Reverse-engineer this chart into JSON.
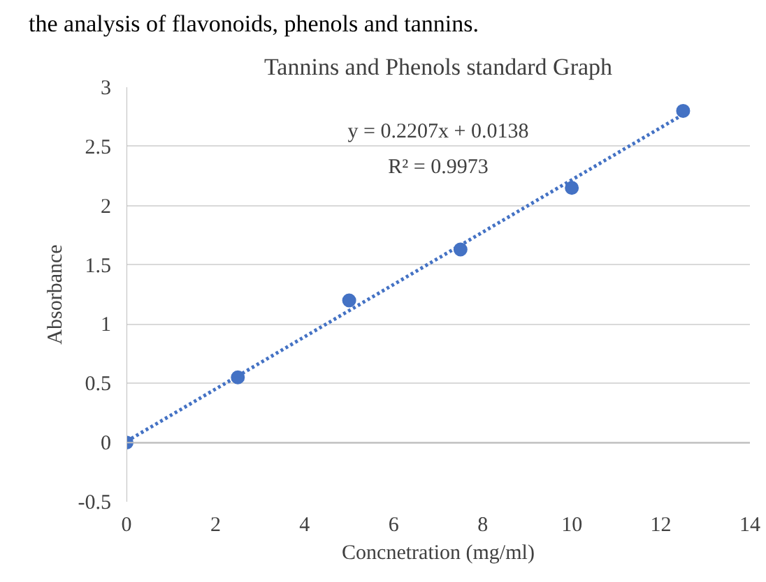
{
  "chart_data": {
    "type": "scatter",
    "title": "Tannins and Phenols standard Graph",
    "xlabel": "Concnetration (mg/ml)",
    "ylabel": "Absorbance",
    "annotations": [
      "the analysis of flavonoids, phenols and tannins.",
      "y = 0.2207x + 0.0138",
      "R² = 0.9973"
    ],
    "series": [
      {
        "color": "#4472c4",
        "x": [
          0,
          2.5,
          5,
          7.5,
          10,
          12.5
        ],
        "values": [
          0,
          0.55,
          1.2,
          1.63,
          2.15,
          2.8
        ],
        "marker": "circle"
      },
      {
        "type": "line",
        "color": "#4472c4",
        "x": [
          0,
          12.5
        ],
        "values": [
          0.01,
          2.77
        ],
        "line_style": "dotted",
        "marker": "none"
      }
    ],
    "xlim": [
      0,
      14
    ],
    "xticks": [
      0,
      2,
      4,
      6,
      8,
      10,
      12,
      14
    ],
    "ylim": [
      -0.5,
      3
    ],
    "yticks": [
      -0.5,
      0,
      0.5,
      1,
      1.5,
      2,
      2.5,
      3
    ],
    "grid": "y"
  }
}
